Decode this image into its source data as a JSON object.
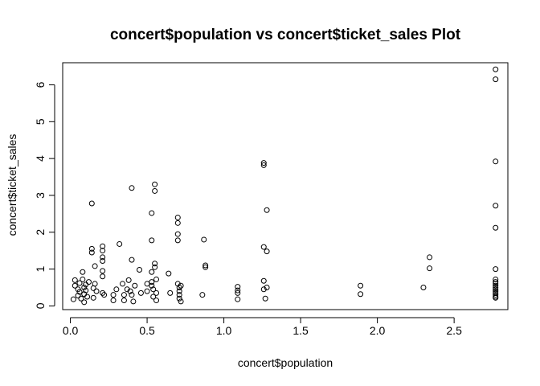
{
  "chart_data": {
    "type": "scatter",
    "title": "concert$population vs concert$ticket_sales Plot",
    "xlabel": "concert$population",
    "ylabel": "concert$ticket_sales",
    "xlim": [
      -0.05,
      2.85
    ],
    "ylim": [
      -0.1,
      6.6
    ],
    "x_ticks": [
      "0.0",
      "0.5",
      "1.0",
      "1.5",
      "2.0",
      "2.5"
    ],
    "y_ticks": [
      "0",
      "1",
      "2",
      "3",
      "4",
      "5",
      "6"
    ],
    "grid": false,
    "legend": "none",
    "points": [
      [
        0.02,
        0.18
      ],
      [
        0.03,
        0.55
      ],
      [
        0.03,
        0.7
      ],
      [
        0.05,
        0.45
      ],
      [
        0.05,
        0.28
      ],
      [
        0.06,
        0.62
      ],
      [
        0.06,
        0.38
      ],
      [
        0.07,
        0.2
      ],
      [
        0.08,
        0.92
      ],
      [
        0.08,
        0.72
      ],
      [
        0.09,
        0.5
      ],
      [
        0.09,
        0.32
      ],
      [
        0.09,
        0.1
      ],
      [
        0.1,
        0.58
      ],
      [
        0.1,
        0.42
      ],
      [
        0.11,
        0.25
      ],
      [
        0.12,
        0.65
      ],
      [
        0.14,
        2.78
      ],
      [
        0.14,
        1.55
      ],
      [
        0.14,
        1.45
      ],
      [
        0.15,
        0.48
      ],
      [
        0.15,
        0.22
      ],
      [
        0.16,
        1.08
      ],
      [
        0.16,
        0.6
      ],
      [
        0.17,
        0.4
      ],
      [
        0.21,
        1.62
      ],
      [
        0.21,
        1.5
      ],
      [
        0.21,
        1.32
      ],
      [
        0.21,
        1.22
      ],
      [
        0.21,
        0.95
      ],
      [
        0.21,
        0.8
      ],
      [
        0.21,
        0.35
      ],
      [
        0.22,
        0.3
      ],
      [
        0.28,
        0.3
      ],
      [
        0.28,
        0.15
      ],
      [
        0.3,
        0.45
      ],
      [
        0.32,
        1.68
      ],
      [
        0.34,
        0.6
      ],
      [
        0.35,
        0.3
      ],
      [
        0.35,
        0.15
      ],
      [
        0.37,
        0.45
      ],
      [
        0.38,
        0.7
      ],
      [
        0.39,
        0.4
      ],
      [
        0.4,
        0.3
      ],
      [
        0.41,
        0.12
      ],
      [
        0.42,
        0.55
      ],
      [
        0.4,
        3.2
      ],
      [
        0.4,
        1.25
      ],
      [
        0.45,
        0.98
      ],
      [
        0.46,
        0.35
      ],
      [
        0.5,
        0.6
      ],
      [
        0.5,
        0.4
      ],
      [
        0.53,
        1.78
      ],
      [
        0.53,
        2.52
      ],
      [
        0.53,
        0.92
      ],
      [
        0.53,
        0.65
      ],
      [
        0.53,
        0.55
      ],
      [
        0.54,
        0.45
      ],
      [
        0.54,
        0.25
      ],
      [
        0.55,
        3.3
      ],
      [
        0.55,
        3.12
      ],
      [
        0.55,
        1.15
      ],
      [
        0.55,
        1.05
      ],
      [
        0.56,
        0.72
      ],
      [
        0.56,
        0.35
      ],
      [
        0.56,
        0.15
      ],
      [
        0.64,
        0.88
      ],
      [
        0.65,
        0.35
      ],
      [
        0.7,
        2.4
      ],
      [
        0.7,
        2.25
      ],
      [
        0.7,
        1.95
      ],
      [
        0.7,
        1.78
      ],
      [
        0.7,
        0.6
      ],
      [
        0.71,
        0.5
      ],
      [
        0.71,
        0.4
      ],
      [
        0.71,
        0.3
      ],
      [
        0.71,
        0.2
      ],
      [
        0.72,
        0.55
      ],
      [
        0.72,
        0.12
      ],
      [
        0.86,
        0.3
      ],
      [
        0.87,
        1.8
      ],
      [
        0.88,
        1.1
      ],
      [
        0.88,
        1.05
      ],
      [
        1.09,
        0.52
      ],
      [
        1.09,
        0.42
      ],
      [
        1.09,
        0.35
      ],
      [
        1.09,
        0.18
      ],
      [
        1.26,
        3.88
      ],
      [
        1.26,
        3.82
      ],
      [
        1.26,
        1.6
      ],
      [
        1.26,
        0.68
      ],
      [
        1.26,
        0.45
      ],
      [
        1.27,
        0.2
      ],
      [
        1.28,
        2.6
      ],
      [
        1.28,
        1.48
      ],
      [
        1.28,
        0.5
      ],
      [
        1.89,
        0.55
      ],
      [
        1.89,
        0.32
      ],
      [
        2.3,
        0.5
      ],
      [
        2.34,
        1.32
      ],
      [
        2.34,
        1.02
      ],
      [
        2.77,
        6.42
      ],
      [
        2.77,
        6.15
      ],
      [
        2.77,
        3.92
      ],
      [
        2.77,
        2.72
      ],
      [
        2.77,
        2.12
      ],
      [
        2.77,
        1.0
      ],
      [
        2.77,
        0.72
      ],
      [
        2.77,
        0.65
      ],
      [
        2.77,
        0.6
      ],
      [
        2.77,
        0.55
      ],
      [
        2.77,
        0.5
      ],
      [
        2.77,
        0.45
      ],
      [
        2.77,
        0.4
      ],
      [
        2.77,
        0.35
      ],
      [
        2.77,
        0.3
      ],
      [
        2.77,
        0.25
      ],
      [
        2.77,
        0.22
      ]
    ]
  }
}
